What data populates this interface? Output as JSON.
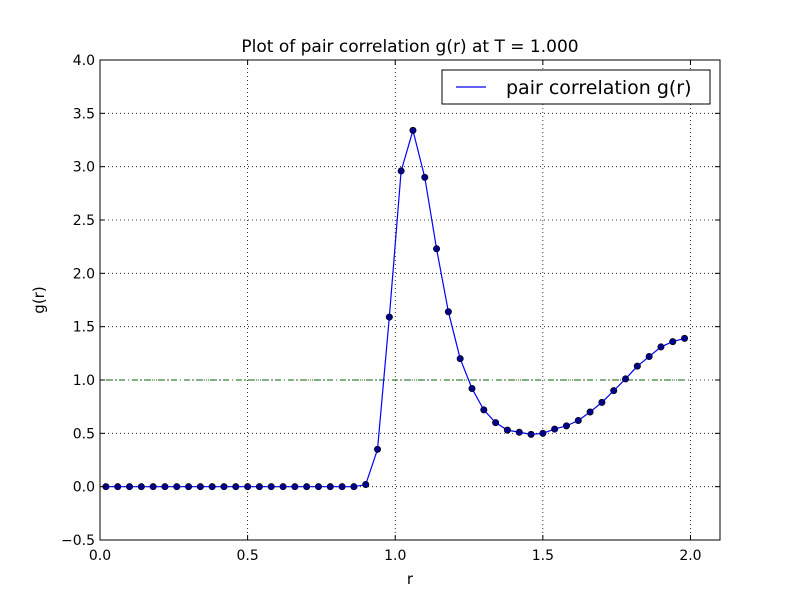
{
  "chart_data": {
    "type": "line",
    "title": "Plot of pair correlation g(r) at T = 1.000",
    "xlabel": "r",
    "ylabel": "g(r)",
    "xlim": [
      0.0,
      2.1
    ],
    "ylim": [
      -0.5,
      4.0
    ],
    "xticks": [
      0.0,
      0.5,
      1.0,
      1.5,
      2.0
    ],
    "xtick_labels": [
      "0.0",
      "0.5",
      "1.0",
      "1.5",
      "2.0"
    ],
    "yticks": [
      -0.5,
      0.0,
      0.5,
      1.0,
      1.5,
      2.0,
      2.5,
      3.0,
      3.5,
      4.0
    ],
    "ytick_labels": [
      "−0.5",
      "0.0",
      "0.5",
      "1.0",
      "1.5",
      "2.0",
      "2.5",
      "3.0",
      "3.5",
      "4.0"
    ],
    "grid": true,
    "legend_position": "top-right",
    "series": [
      {
        "name": "pair correlation g(r)",
        "color": "#0000ff",
        "marker": "circle",
        "x": [
          0.02,
          0.06,
          0.1,
          0.14,
          0.18,
          0.22,
          0.26,
          0.3,
          0.34,
          0.38,
          0.42,
          0.46,
          0.5,
          0.54,
          0.58,
          0.62,
          0.66,
          0.7,
          0.74,
          0.78,
          0.82,
          0.86,
          0.9,
          0.94,
          0.98,
          1.02,
          1.06,
          1.1,
          1.14,
          1.18,
          1.22,
          1.26,
          1.3,
          1.34,
          1.38,
          1.42,
          1.46,
          1.5,
          1.54,
          1.58,
          1.62,
          1.66,
          1.7,
          1.74,
          1.78,
          1.82,
          1.86,
          1.9,
          1.94,
          1.98
        ],
        "y": [
          0.0,
          0.0,
          0.0,
          0.0,
          0.0,
          0.0,
          0.0,
          0.0,
          0.0,
          0.0,
          0.0,
          0.0,
          0.0,
          0.0,
          0.0,
          0.0,
          0.0,
          0.0,
          0.0,
          0.0,
          0.0,
          0.0,
          0.02,
          0.35,
          1.59,
          2.96,
          3.34,
          2.9,
          2.23,
          1.64,
          1.2,
          0.92,
          0.72,
          0.6,
          0.53,
          0.51,
          0.49,
          0.5,
          0.54,
          0.57,
          0.62,
          0.7,
          0.79,
          0.9,
          1.01,
          1.13,
          1.22,
          1.31,
          1.36,
          1.39
        ]
      }
    ],
    "reference_line": {
      "y": 1.0,
      "color": "#006400",
      "style": "dash-dot"
    }
  }
}
